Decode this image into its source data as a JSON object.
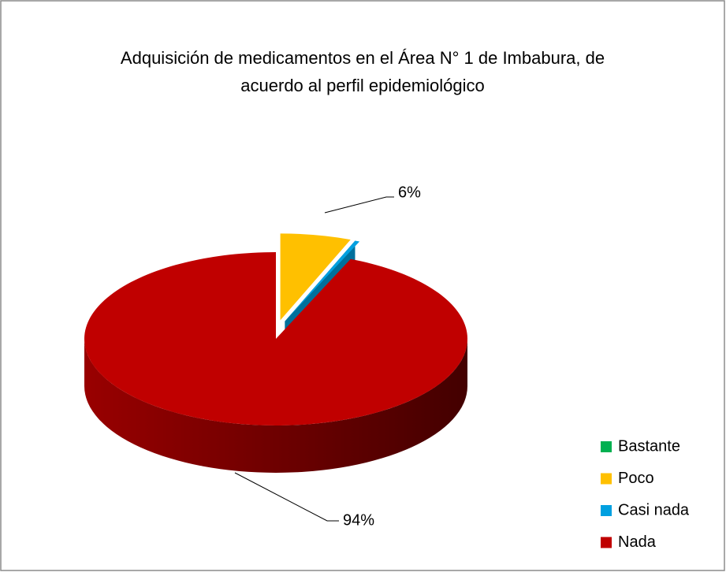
{
  "chart_data": {
    "type": "pie3d",
    "title": "Adquisición de medicamentos  en el  Área N° 1 de Imbabura, de acuerdo al perfil epidemiológico",
    "categories": [
      "Bastante",
      "Poco",
      "Casi nada",
      "Nada"
    ],
    "values": [
      0,
      6,
      0.4,
      94
    ],
    "value_labels": [
      null,
      "6%",
      null,
      "94%"
    ],
    "colors": [
      "#00b050",
      "#ffc000",
      "#00a0e0",
      "#c00000"
    ],
    "exploded": [
      true,
      true,
      true,
      false
    ],
    "legend": "right"
  }
}
